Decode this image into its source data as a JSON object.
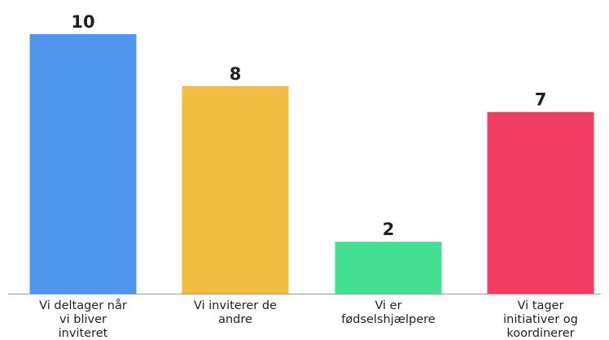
{
  "chart_data": {
    "type": "bar",
    "categories": [
      "Vi deltager når vi bliver inviteret",
      "Vi inviterer de andre",
      "Vi er fødselshjælpere",
      "Vi tager initiativer og koordinerer"
    ],
    "category_lines": [
      [
        "Vi deltager når",
        "vi bliver",
        "inviteret"
      ],
      [
        "Vi inviterer de",
        "andre"
      ],
      [
        "Vi er",
        "fødselshjælpere"
      ],
      [
        "Vi tager",
        "initiativer og",
        "koordinerer"
      ]
    ],
    "values": [
      10,
      8,
      2,
      7
    ],
    "colors": [
      "#4f96ef",
      "#efbd3f",
      "#44e092",
      "#f23c62"
    ],
    "ylim": [
      0,
      10
    ],
    "axis_color": "#9a9a9a",
    "grid": false,
    "title": "",
    "xlabel": "",
    "ylabel": ""
  }
}
